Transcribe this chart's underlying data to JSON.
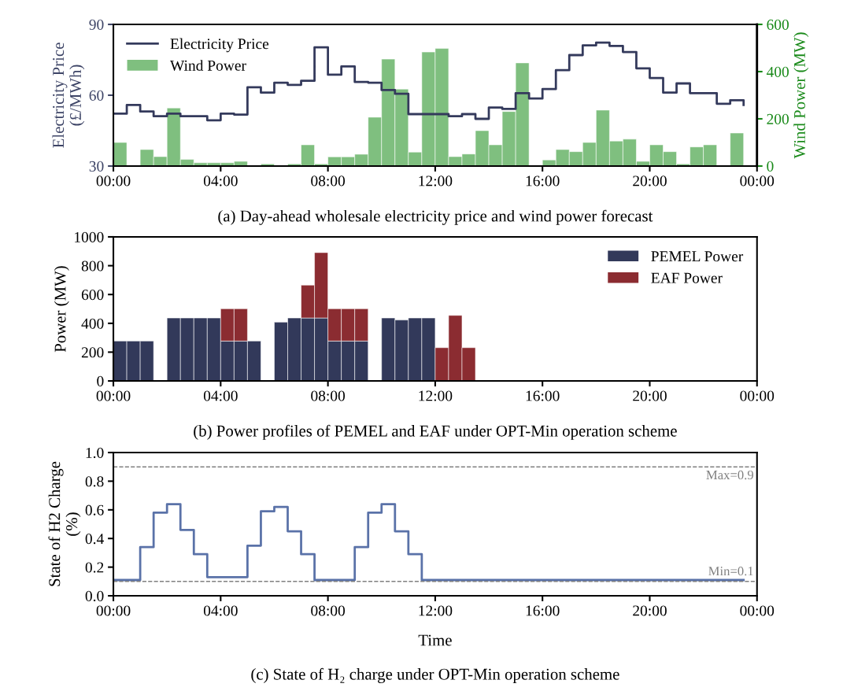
{
  "chart_data": [
    {
      "type": "step",
      "annotations": [
        "(a) Day-ahead wholesale electricity price and wind power forecast"
      ],
      "ylabel": "Electricity Price\n(£/MWh)",
      "y2label": "Wind Power (MW)",
      "x": [
        0,
        0.5,
        1,
        1.5,
        2,
        2.5,
        3,
        3.5,
        4,
        4.5,
        5,
        5.5,
        6,
        6.5,
        7,
        7.5,
        8,
        8.5,
        9,
        9.5,
        10,
        10.5,
        11,
        11.5,
        12,
        12.5,
        13,
        13.5,
        14,
        14.5,
        15,
        15.5,
        16,
        16.5,
        17,
        17.5,
        18,
        18.5,
        19,
        19.5,
        20,
        20.5,
        21,
        21.5,
        22,
        22.5,
        23,
        23.5
      ],
      "series": [
        {
          "name": "Electricity Price",
          "type": "step",
          "color": "#343a5c",
          "values": [
            52.2,
            55.9,
            53.1,
            51.1,
            52.2,
            51.1,
            51.1,
            49.4,
            52.2,
            51.8,
            63.4,
            61.1,
            65.3,
            64.4,
            66.1,
            80.3,
            68.7,
            72.2,
            65.6,
            65.3,
            62.2,
            60.6,
            52,
            52,
            52,
            51.1,
            52,
            50,
            54.8,
            54.2,
            60.9,
            58.6,
            62.6,
            70.6,
            77,
            81.1,
            82.3,
            80.9,
            78.3,
            71.4,
            67.3,
            61.1,
            65,
            60.9,
            60.9,
            56.4,
            57.9,
            55.9
          ]
        },
        {
          "name": "Wind Power",
          "type": "bar",
          "axis": "y2",
          "color": "#7fbf7f",
          "x": [
            0.25,
            0.75,
            1.25,
            1.75,
            2.25,
            2.75,
            3.25,
            3.75,
            4.25,
            4.75,
            5.25,
            5.75,
            6.25,
            6.75,
            7.25,
            7.75,
            8.25,
            8.75,
            9.25,
            9.75,
            10.25,
            10.75,
            11.25,
            11.75,
            12.25,
            12.75,
            13.25,
            13.75,
            14.25,
            14.75,
            15.25,
            15.75,
            16.25,
            16.75,
            17.25,
            17.75,
            18.25,
            18.75,
            19.25,
            19.75,
            20.25,
            20.75,
            21.25,
            21.75,
            22.25,
            22.75,
            23.25,
            23.75
          ],
          "values": [
            100,
            0,
            70,
            40,
            246,
            28,
            14,
            14,
            14,
            20,
            0,
            9,
            0,
            9,
            90,
            9,
            39,
            39,
            50,
            207,
            453,
            326,
            59,
            483,
            498,
            40,
            51,
            150,
            90,
            231,
            437,
            0,
            26,
            70,
            61,
            100,
            237,
            106,
            114,
            20,
            90,
            61,
            9,
            81,
            90,
            0,
            140,
            0
          ]
        }
      ],
      "ylim": [
        30,
        90
      ],
      "yticks": [
        30,
        60,
        90
      ],
      "y2lim": [
        0,
        600
      ],
      "y2ticks": [
        0,
        200,
        400,
        600
      ],
      "xlim": [
        0,
        24
      ],
      "xticks": [
        {
          "value": 0,
          "label": "00:00"
        },
        {
          "value": 4,
          "label": "04:00"
        },
        {
          "value": 8,
          "label": "08:00"
        },
        {
          "value": 12,
          "label": "12:00"
        },
        {
          "value": 16,
          "label": "16:00"
        },
        {
          "value": 20,
          "label": "20:00"
        },
        {
          "value": 24,
          "label": "00:00"
        }
      ],
      "legend": "top left"
    },
    {
      "type": "bar",
      "stacked": true,
      "annotations": [
        "(b) Power profiles of PEMEL and EAF under OPT-Min operation scheme"
      ],
      "ylabel": "Power (MW)",
      "x": [
        0.25,
        0.75,
        1.25,
        1.75,
        2.25,
        2.75,
        3.25,
        3.75,
        4.25,
        4.75,
        5.25,
        5.75,
        6.25,
        6.75,
        7.25,
        7.75,
        8.25,
        8.75,
        9.25,
        9.75,
        10.25,
        10.75,
        11.25,
        11.75,
        12.25,
        12.75,
        13.25,
        13.75,
        14.25,
        14.75,
        15.25,
        15.75,
        16.25,
        16.75,
        17.25,
        17.75,
        18.25,
        18.75,
        19.25,
        19.75,
        20.25,
        20.75,
        21.25,
        21.75,
        22.25,
        22.75,
        23.25,
        23.75
      ],
      "series": [
        {
          "name": "PEMEL Power",
          "color": "#32395a",
          "values": [
            277,
            277,
            277,
            0,
            437,
            437,
            437,
            437,
            277,
            277,
            277,
            0,
            408,
            437,
            437,
            437,
            277,
            277,
            277,
            0,
            437,
            423,
            437,
            437,
            0,
            0,
            0,
            0,
            0,
            0,
            0,
            0,
            0,
            0,
            0,
            0,
            0,
            0,
            0,
            0,
            0,
            0,
            0,
            0,
            0,
            0,
            0,
            0
          ]
        },
        {
          "name": "EAF Power",
          "color": "#8b2c31",
          "values": [
            0,
            0,
            0,
            0,
            0,
            0,
            0,
            0,
            224,
            224,
            0,
            0,
            0,
            0,
            228,
            454,
            224,
            224,
            224,
            0,
            0,
            0,
            0,
            0,
            231,
            455,
            231,
            0,
            0,
            0,
            0,
            0,
            0,
            0,
            0,
            0,
            0,
            0,
            0,
            0,
            0,
            0,
            0,
            0,
            0,
            0,
            0,
            0
          ]
        }
      ],
      "ylim": [
        0,
        1000
      ],
      "yticks": [
        0,
        200,
        400,
        600,
        800,
        1000
      ],
      "xlim": [
        0,
        24
      ],
      "xticks": [
        {
          "value": 0,
          "label": "00:00"
        },
        {
          "value": 4,
          "label": "04:00"
        },
        {
          "value": 8,
          "label": "08:00"
        },
        {
          "value": 12,
          "label": "12:00"
        },
        {
          "value": 16,
          "label": "16:00"
        },
        {
          "value": 20,
          "label": "20:00"
        },
        {
          "value": 24,
          "label": "00:00"
        }
      ],
      "legend": "top right"
    },
    {
      "type": "step",
      "annotations": [
        "(c) State of H₂ charge under OPT-Min operation scheme"
      ],
      "xlabel": "Time",
      "ylabel": "State of H2 Charge\n(%)",
      "x": [
        0,
        0.5,
        1,
        1.5,
        2,
        2.5,
        3,
        3.5,
        4,
        4.5,
        5,
        5.5,
        6,
        6.5,
        7,
        7.5,
        8,
        8.5,
        9,
        9.5,
        10,
        10.5,
        11,
        11.5,
        12,
        12.5,
        13,
        13.5,
        14,
        14.5,
        15,
        15.5,
        16,
        16.5,
        17,
        17.5,
        18,
        18.5,
        19,
        19.5,
        20,
        20.5,
        21,
        21.5,
        22,
        22.5,
        23,
        23.5
      ],
      "series": [
        {
          "color": "#5a72a8",
          "values": [
            0.11,
            0.11,
            0.34,
            0.58,
            0.64,
            0.46,
            0.29,
            0.13,
            0.13,
            0.13,
            0.35,
            0.59,
            0.62,
            0.45,
            0.29,
            0.11,
            0.11,
            0.11,
            0.34,
            0.58,
            0.64,
            0.45,
            0.29,
            0.11,
            0.11,
            0.11,
            0.11,
            0.11,
            0.11,
            0.11,
            0.11,
            0.11,
            0.11,
            0.11,
            0.11,
            0.11,
            0.11,
            0.11,
            0.11,
            0.11,
            0.11,
            0.11,
            0.11,
            0.11,
            0.11,
            0.11,
            0.11,
            0.11
          ]
        }
      ],
      "ref_lines": [
        {
          "axis": "y",
          "value": 0.9,
          "label": "Max=0.9",
          "color": "#808080",
          "line_style": "dashed"
        },
        {
          "axis": "y",
          "value": 0.1,
          "label": "Min=0.1",
          "color": "#808080",
          "line_style": "dashed"
        }
      ],
      "ylim": [
        0,
        1
      ],
      "yticks": [
        {
          "value": 0,
          "label": "0.0"
        },
        {
          "value": 0.2,
          "label": "0.2"
        },
        {
          "value": 0.4,
          "label": "0.4"
        },
        {
          "value": 0.6,
          "label": "0.6"
        },
        {
          "value": 0.8,
          "label": "0.8"
        },
        {
          "value": 1,
          "label": "1.0"
        }
      ],
      "xlim": [
        0,
        24
      ],
      "xticks": [
        {
          "value": 0,
          "label": "00:00"
        },
        {
          "value": 4,
          "label": "04:00"
        },
        {
          "value": 8,
          "label": "08:00"
        },
        {
          "value": 12,
          "label": "12:00"
        },
        {
          "value": 16,
          "label": "16:00"
        },
        {
          "value": 20,
          "label": "20:00"
        },
        {
          "value": 24,
          "label": "00:00"
        }
      ]
    }
  ]
}
